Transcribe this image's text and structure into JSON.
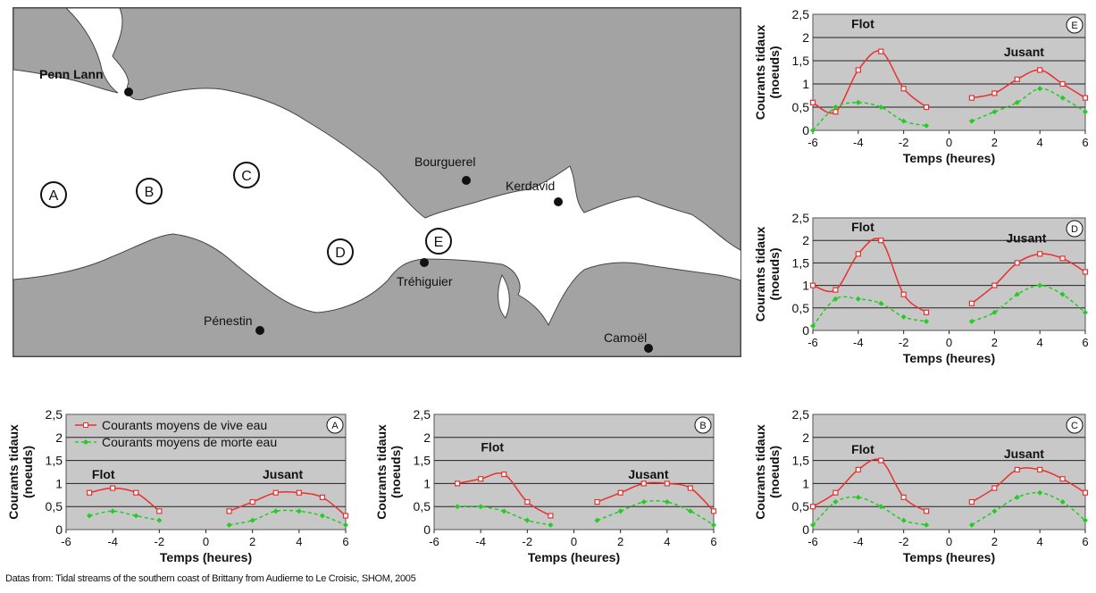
{
  "map": {
    "places": [
      {
        "name": "Penn Lann",
        "lx": 30,
        "ly": 80,
        "dx": 130,
        "dy": 95
      },
      {
        "name": "Bourguerel",
        "lx": 450,
        "ly": 178,
        "dx": 508,
        "dy": 194
      },
      {
        "name": "Kerdavid",
        "lx": 552,
        "ly": 205,
        "dx": 611,
        "dy": 218
      },
      {
        "name": "Tréhiguier",
        "lx": 430,
        "ly": 312,
        "dx": 461,
        "dy": 286
      },
      {
        "name": "Pénestin",
        "lx": 214,
        "ly": 356,
        "dx": 277,
        "dy": 362
      },
      {
        "name": "Camoël",
        "lx": 662,
        "ly": 375,
        "dx": 712,
        "dy": 382
      }
    ],
    "zones": [
      {
        "label": "A",
        "cx": 46,
        "cy": 210
      },
      {
        "label": "B",
        "cx": 153,
        "cy": 206
      },
      {
        "label": "C",
        "cx": 262,
        "cy": 188
      },
      {
        "label": "D",
        "cx": 367,
        "cy": 274
      },
      {
        "label": "E",
        "cx": 477,
        "cy": 262
      }
    ]
  },
  "legend": {
    "spring": "Courants moyens de vive eau",
    "neap": "Courants moyens de morte eau"
  },
  "colors": {
    "spring": "#e8312f",
    "neap": "#22cc22",
    "plot_bg": "#c8c8c8"
  },
  "source": "Datas from: Tidal streams of the southern coast of Brittany from Audierne to Le Croisic, SHOM, 2005",
  "chart_data": [
    {
      "id": "E",
      "type": "line",
      "xlabel": "Temps (heures)",
      "ylabel": "Courants tidaux (noeuds)",
      "xlim": [
        -6,
        6
      ],
      "ylim": [
        0,
        2.5
      ],
      "xticks": [
        -6,
        -4,
        -2,
        0,
        2,
        4,
        6
      ],
      "yticks": [
        "0",
        "0,5",
        "1",
        "1,5",
        "2",
        "2,5"
      ],
      "annotations": [
        "Flot",
        "Jusant"
      ],
      "series": [
        {
          "key": "spring",
          "segments": [
            {
              "x": [
                -6,
                -5,
                -4,
                -3,
                -2,
                -1
              ],
              "y": [
                0.6,
                0.4,
                1.3,
                1.7,
                0.9,
                0.5
              ]
            },
            {
              "x": [
                1,
                2,
                3,
                4,
                5,
                6
              ],
              "y": [
                0.7,
                0.8,
                1.1,
                1.3,
                1.0,
                0.7
              ]
            }
          ]
        },
        {
          "key": "neap",
          "segments": [
            {
              "x": [
                -6,
                -5,
                -4,
                -3,
                -2,
                -1
              ],
              "y": [
                0.0,
                0.5,
                0.6,
                0.5,
                0.2,
                0.1
              ]
            },
            {
              "x": [
                1,
                2,
                3,
                4,
                5,
                6
              ],
              "y": [
                0.2,
                0.4,
                0.6,
                0.9,
                0.7,
                0.4
              ]
            }
          ]
        }
      ]
    },
    {
      "id": "D",
      "type": "line",
      "xlabel": "Temps (heures)",
      "ylabel": "Courants tidaux (noeuds)",
      "xlim": [
        -6,
        6
      ],
      "ylim": [
        0,
        2.5
      ],
      "xticks": [
        -6,
        -4,
        -2,
        0,
        2,
        4,
        6
      ],
      "yticks": [
        "0",
        "0,5",
        "1",
        "1,5",
        "2",
        "2,5"
      ],
      "annotations": [
        "Flot",
        "Jusant"
      ],
      "series": [
        {
          "key": "spring",
          "segments": [
            {
              "x": [
                -6,
                -5,
                -4,
                -3,
                -2,
                -1
              ],
              "y": [
                1.0,
                0.9,
                1.7,
                2.0,
                0.8,
                0.4
              ]
            },
            {
              "x": [
                1,
                2,
                3,
                4,
                5,
                6
              ],
              "y": [
                0.6,
                1.0,
                1.5,
                1.7,
                1.6,
                1.3
              ]
            }
          ]
        },
        {
          "key": "neap",
          "segments": [
            {
              "x": [
                -6,
                -5,
                -4,
                -3,
                -2,
                -1
              ],
              "y": [
                0.1,
                0.7,
                0.7,
                0.6,
                0.3,
                0.2
              ]
            },
            {
              "x": [
                1,
                2,
                3,
                4,
                5,
                6
              ],
              "y": [
                0.2,
                0.4,
                0.8,
                1.0,
                0.8,
                0.4
              ]
            }
          ]
        }
      ]
    },
    {
      "id": "A",
      "type": "line",
      "xlabel": "Temps (heures)",
      "ylabel": "Courants tidaux (noeuds)",
      "xlim": [
        -6,
        6
      ],
      "ylim": [
        0,
        2.5
      ],
      "xticks": [
        -6,
        -4,
        -2,
        0,
        2,
        4,
        6
      ],
      "yticks": [
        "0",
        "0,5",
        "1",
        "1,5",
        "2",
        "2,5"
      ],
      "annotations": [
        "Flot",
        "Jusant"
      ],
      "legend": true,
      "series": [
        {
          "key": "spring",
          "segments": [
            {
              "x": [
                -5,
                -4,
                -3,
                -2
              ],
              "y": [
                0.8,
                0.9,
                0.8,
                0.4
              ]
            },
            {
              "x": [
                1,
                2,
                3,
                4,
                5,
                6
              ],
              "y": [
                0.4,
                0.6,
                0.8,
                0.8,
                0.7,
                0.3
              ]
            }
          ]
        },
        {
          "key": "neap",
          "segments": [
            {
              "x": [
                -5,
                -4,
                -3,
                -2
              ],
              "y": [
                0.3,
                0.4,
                0.3,
                0.2
              ]
            },
            {
              "x": [
                1,
                2,
                3,
                4,
                5,
                6
              ],
              "y": [
                0.1,
                0.2,
                0.4,
                0.4,
                0.3,
                0.1
              ]
            }
          ]
        }
      ]
    },
    {
      "id": "B",
      "type": "line",
      "xlabel": "Temps (heures)",
      "ylabel": "Courants tidaux (noeuds)",
      "xlim": [
        -6,
        6
      ],
      "ylim": [
        0,
        2.5
      ],
      "xticks": [
        -6,
        -4,
        -2,
        0,
        2,
        4,
        6
      ],
      "yticks": [
        "0",
        "0,5",
        "1",
        "1,5",
        "2",
        "2,5"
      ],
      "annotations": [
        "Flot",
        "Jusant"
      ],
      "series": [
        {
          "key": "spring",
          "segments": [
            {
              "x": [
                -5,
                -4,
                -3,
                -2,
                -1
              ],
              "y": [
                1.0,
                1.1,
                1.2,
                0.6,
                0.3
              ]
            },
            {
              "x": [
                1,
                2,
                3,
                4,
                5,
                6
              ],
              "y": [
                0.6,
                0.8,
                1.0,
                1.0,
                0.9,
                0.4
              ]
            }
          ]
        },
        {
          "key": "neap",
          "segments": [
            {
              "x": [
                -5,
                -4,
                -3,
                -2,
                -1
              ],
              "y": [
                0.5,
                0.5,
                0.4,
                0.2,
                0.1
              ]
            },
            {
              "x": [
                1,
                2,
                3,
                4,
                5,
                6
              ],
              "y": [
                0.2,
                0.4,
                0.6,
                0.6,
                0.4,
                0.1
              ]
            }
          ]
        }
      ]
    },
    {
      "id": "C",
      "type": "line",
      "xlabel": "Temps (heures)",
      "ylabel": "Courants tidaux (noeuds)",
      "xlim": [
        -6,
        6
      ],
      "ylim": [
        0,
        2.5
      ],
      "xticks": [
        -6,
        -4,
        -2,
        0,
        2,
        4,
        6
      ],
      "yticks": [
        "0",
        "0,5",
        "1",
        "1,5",
        "2",
        "2,5"
      ],
      "annotations": [
        "Flot",
        "Jusant"
      ],
      "series": [
        {
          "key": "spring",
          "segments": [
            {
              "x": [
                -6,
                -5,
                -4,
                -3,
                -2,
                -1
              ],
              "y": [
                0.5,
                0.8,
                1.3,
                1.5,
                0.7,
                0.4
              ]
            },
            {
              "x": [
                1,
                2,
                3,
                4,
                5,
                6
              ],
              "y": [
                0.6,
                0.9,
                1.3,
                1.3,
                1.1,
                0.8
              ]
            }
          ]
        },
        {
          "key": "neap",
          "segments": [
            {
              "x": [
                -6,
                -5,
                -4,
                -3,
                -2,
                -1
              ],
              "y": [
                0.1,
                0.6,
                0.7,
                0.5,
                0.2,
                0.1
              ]
            },
            {
              "x": [
                1,
                2,
                3,
                4,
                5,
                6
              ],
              "y": [
                0.1,
                0.4,
                0.7,
                0.8,
                0.6,
                0.2
              ]
            }
          ]
        }
      ]
    }
  ]
}
